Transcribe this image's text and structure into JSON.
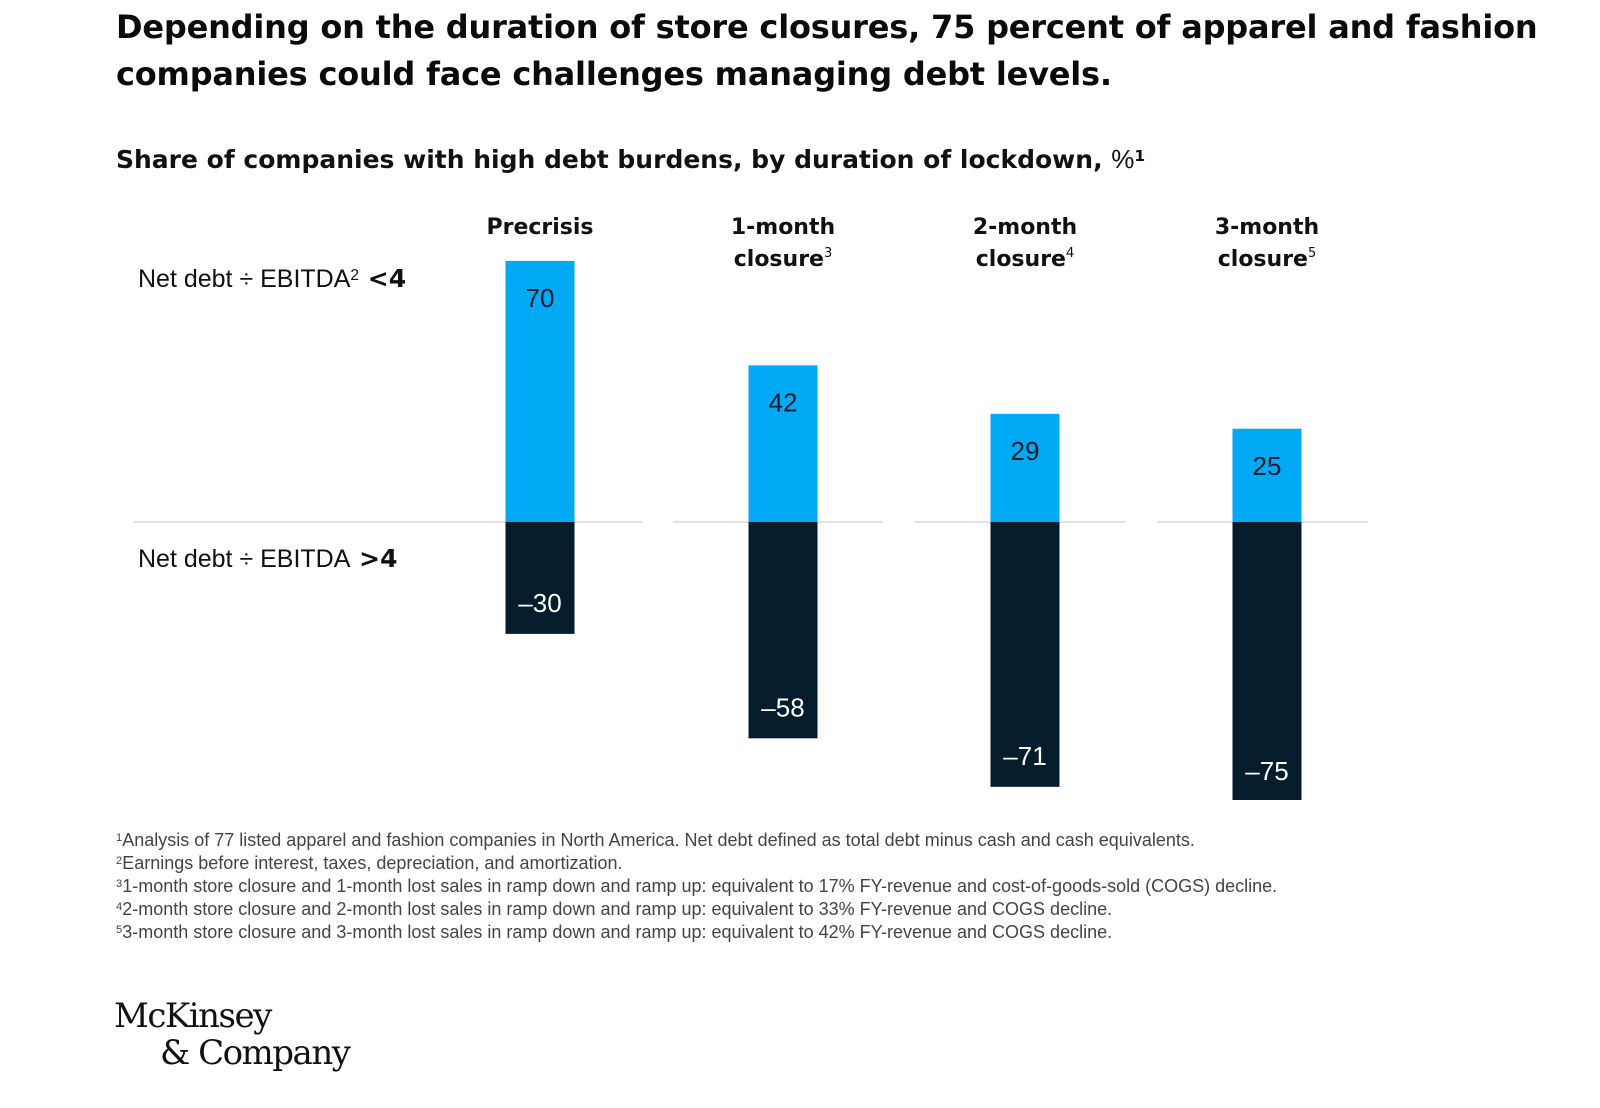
{
  "headline": "Depending on the duration of store closures, 75 percent of apparel and fashion companies could face challenges managing debt levels.",
  "subtitle": {
    "text": "Share of companies with high debt burdens, by duration of lockdown, ",
    "unit": "%",
    "footnote": "1"
  },
  "row_labels": {
    "top": {
      "text": "Net debt ÷ EBITDA",
      "footnote": "2",
      "threshold": " <4"
    },
    "bottom": {
      "text": "Net debt ÷ EBITDA",
      "threshold": " >4"
    }
  },
  "chart_data": {
    "type": "bar",
    "categories": [
      {
        "lines": [
          "Precrisis"
        ],
        "footnote": ""
      },
      {
        "lines": [
          "1-month",
          "closure"
        ],
        "footnote": "3"
      },
      {
        "lines": [
          "2-month",
          "closure"
        ],
        "footnote": "4"
      },
      {
        "lines": [
          "3-month",
          "closure"
        ],
        "footnote": "5"
      }
    ],
    "series": [
      {
        "values": [
          70,
          42,
          29,
          25
        ],
        "labels": [
          "70",
          "42",
          "29",
          "25"
        ],
        "color": "#00a9f4",
        "text_color": "#0b1b2b"
      },
      {
        "values": [
          -30,
          -58,
          -71,
          -75
        ],
        "labels": [
          "–30",
          "–58",
          "–71",
          "–75"
        ],
        "color": "#051c2c",
        "text_color": "#ffffff"
      }
    ],
    "ylim": [
      -75,
      70
    ],
    "baseline_color": "#d9d9d9"
  },
  "footnotes": [
    {
      "mark": "1",
      "text": "Analysis of 77 listed apparel and fashion companies in North America. Net debt defined as total debt minus cash and cash equivalents."
    },
    {
      "mark": "2",
      "text": "Earnings before interest, taxes, depreciation, and amortization."
    },
    {
      "mark": "3",
      "text": "1-month store closure and 1-month lost sales in ramp down and ramp up: equivalent to 17% FY-revenue and cost-of-goods-sold (COGS) decline."
    },
    {
      "mark": "4",
      "text": "2-month store closure and 2-month lost sales in ramp down and ramp up: equivalent to 33% FY-revenue and COGS decline."
    },
    {
      "mark": "5",
      "text": "3-month store closure and 3-month lost sales in ramp down and ramp up: equivalent to 42% FY-revenue and COGS decline."
    }
  ],
  "logo": {
    "line1": "McKinsey",
    "line2": "& Company"
  }
}
